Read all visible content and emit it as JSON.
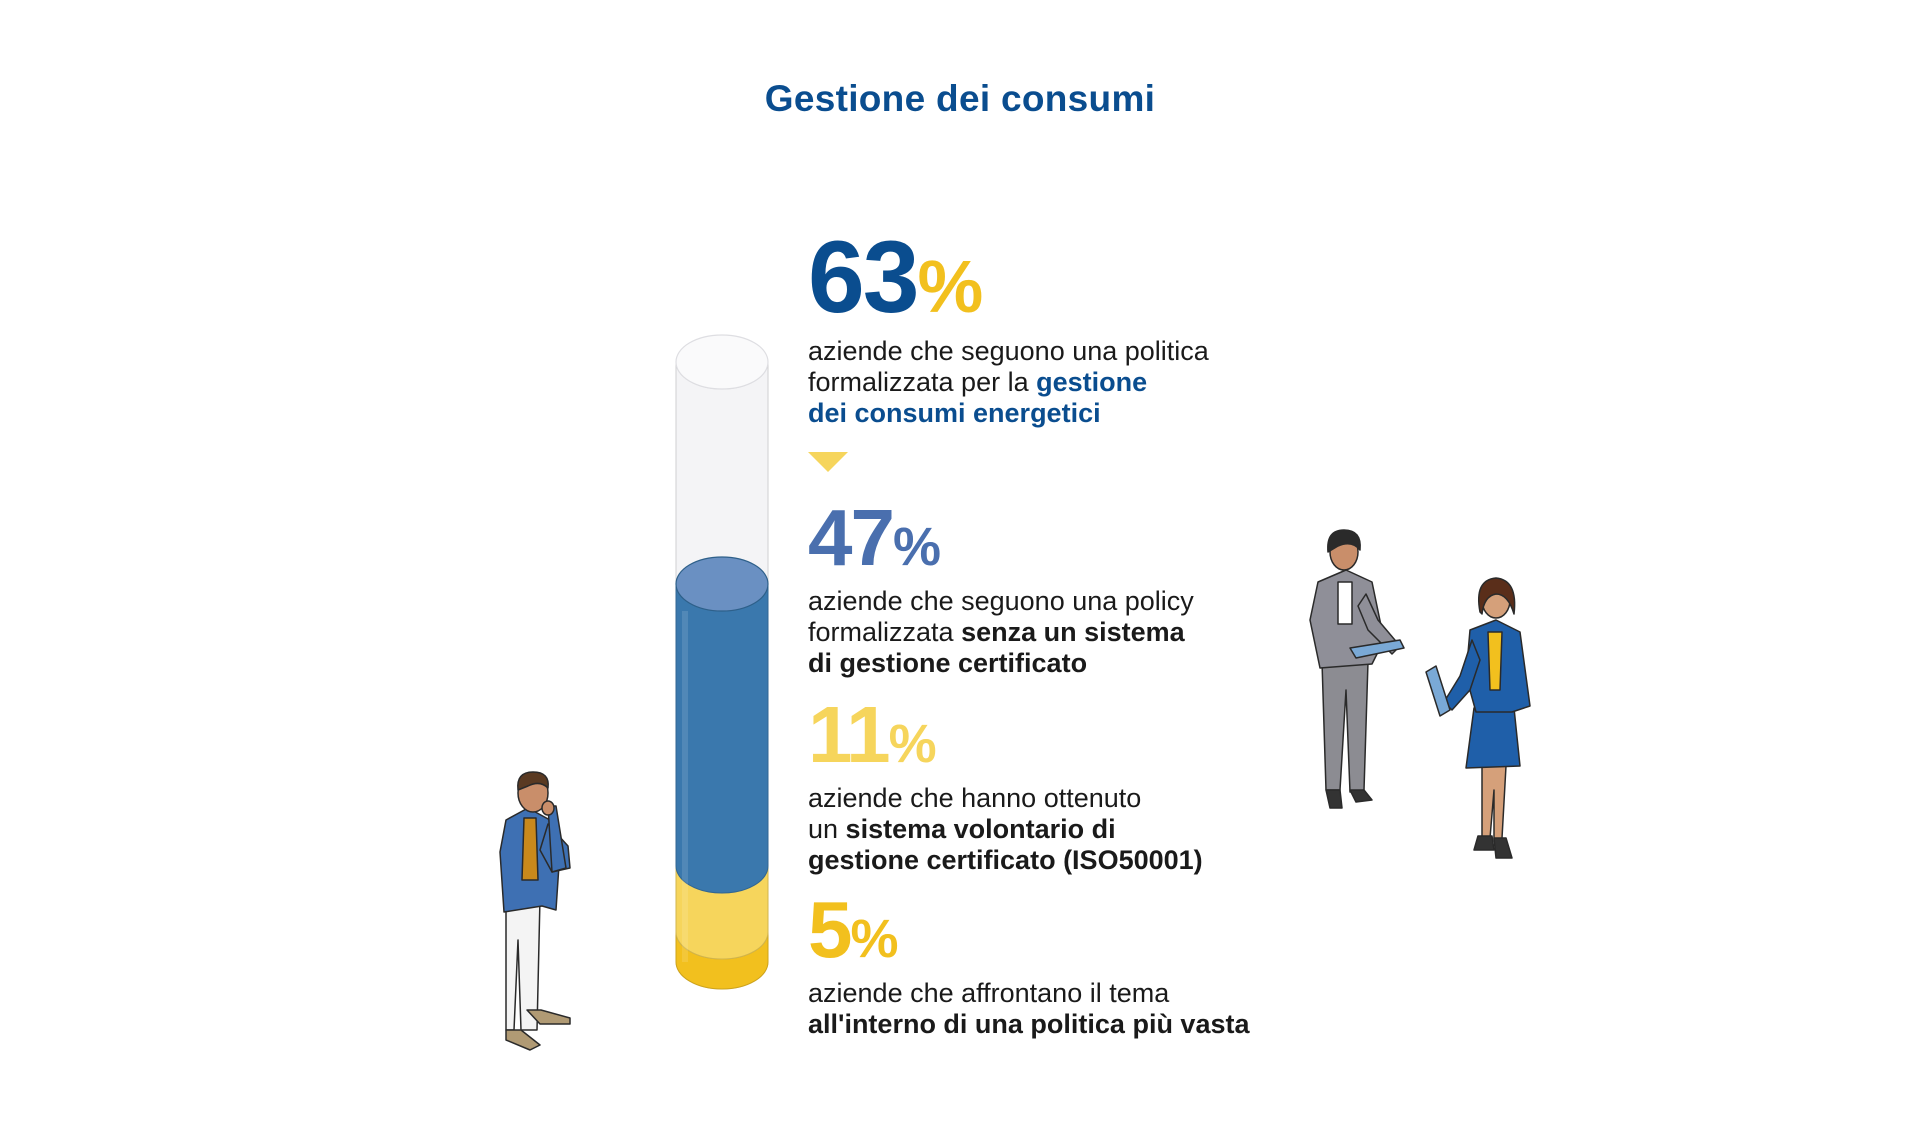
{
  "title": "Gestione dei consumi",
  "colors": {
    "brand_blue": "#0a4d8f",
    "mid_blue": "#4a6fae",
    "cylinder_blue": "#3a78ad",
    "light_yellow": "#f6d55c",
    "gold": "#f2c01e"
  },
  "stats": [
    {
      "value": "63",
      "unit": "%",
      "line1": "aziende che seguono una politica",
      "line2_plain": "formalizzata per la ",
      "line2_highlight": "gestione",
      "line3_highlight": "dei consumi energetici"
    },
    {
      "value": "47",
      "unit": "%",
      "line1": "aziende che seguono una policy",
      "line2_plain": "formalizzata ",
      "line2_highlight": "senza un sistema",
      "line3_highlight": "di gestione certificato"
    },
    {
      "value": "11",
      "unit": "%",
      "line1": "aziende che hanno ottenuto",
      "line2_plain": "un ",
      "line2_highlight": "sistema volontario di",
      "line3_highlight": "gestione certificato (ISO50001)"
    },
    {
      "value": "5",
      "unit": "%",
      "line1": "aziende che affrontano il tema",
      "line2_plain": "",
      "line2_highlight": "all'interno di una politica più vasta",
      "line3_highlight": ""
    }
  ],
  "chart_data": {
    "type": "bar",
    "title": "Gestione dei consumi",
    "categories": [
      "formalizzata per la gestione dei consumi energetici",
      "senza un sistema di gestione certificato",
      "sistema volontario di gestione certificato (ISO50001)",
      "all'interno di una politica più vasta"
    ],
    "values": [
      63,
      47,
      11,
      5
    ],
    "ylim": [
      0,
      100
    ],
    "unit": "%",
    "stack_segments": [
      {
        "name": "senza un sistema di gestione certificato",
        "value": 47,
        "color": "#3a78ad"
      },
      {
        "name": "sistema volontario di gestione certificato (ISO50001)",
        "value": 11,
        "color": "#f6d55c"
      },
      {
        "name": "all'interno di una politica più vasta",
        "value": 5,
        "color": "#f2c01e"
      }
    ],
    "total": 63,
    "grid": false,
    "legend": "none"
  },
  "figures": {
    "left": "man-thinking-figure",
    "right_1": "woman-with-tablet-figure",
    "right_2": "woman-in-blue-with-tablet-figure"
  }
}
